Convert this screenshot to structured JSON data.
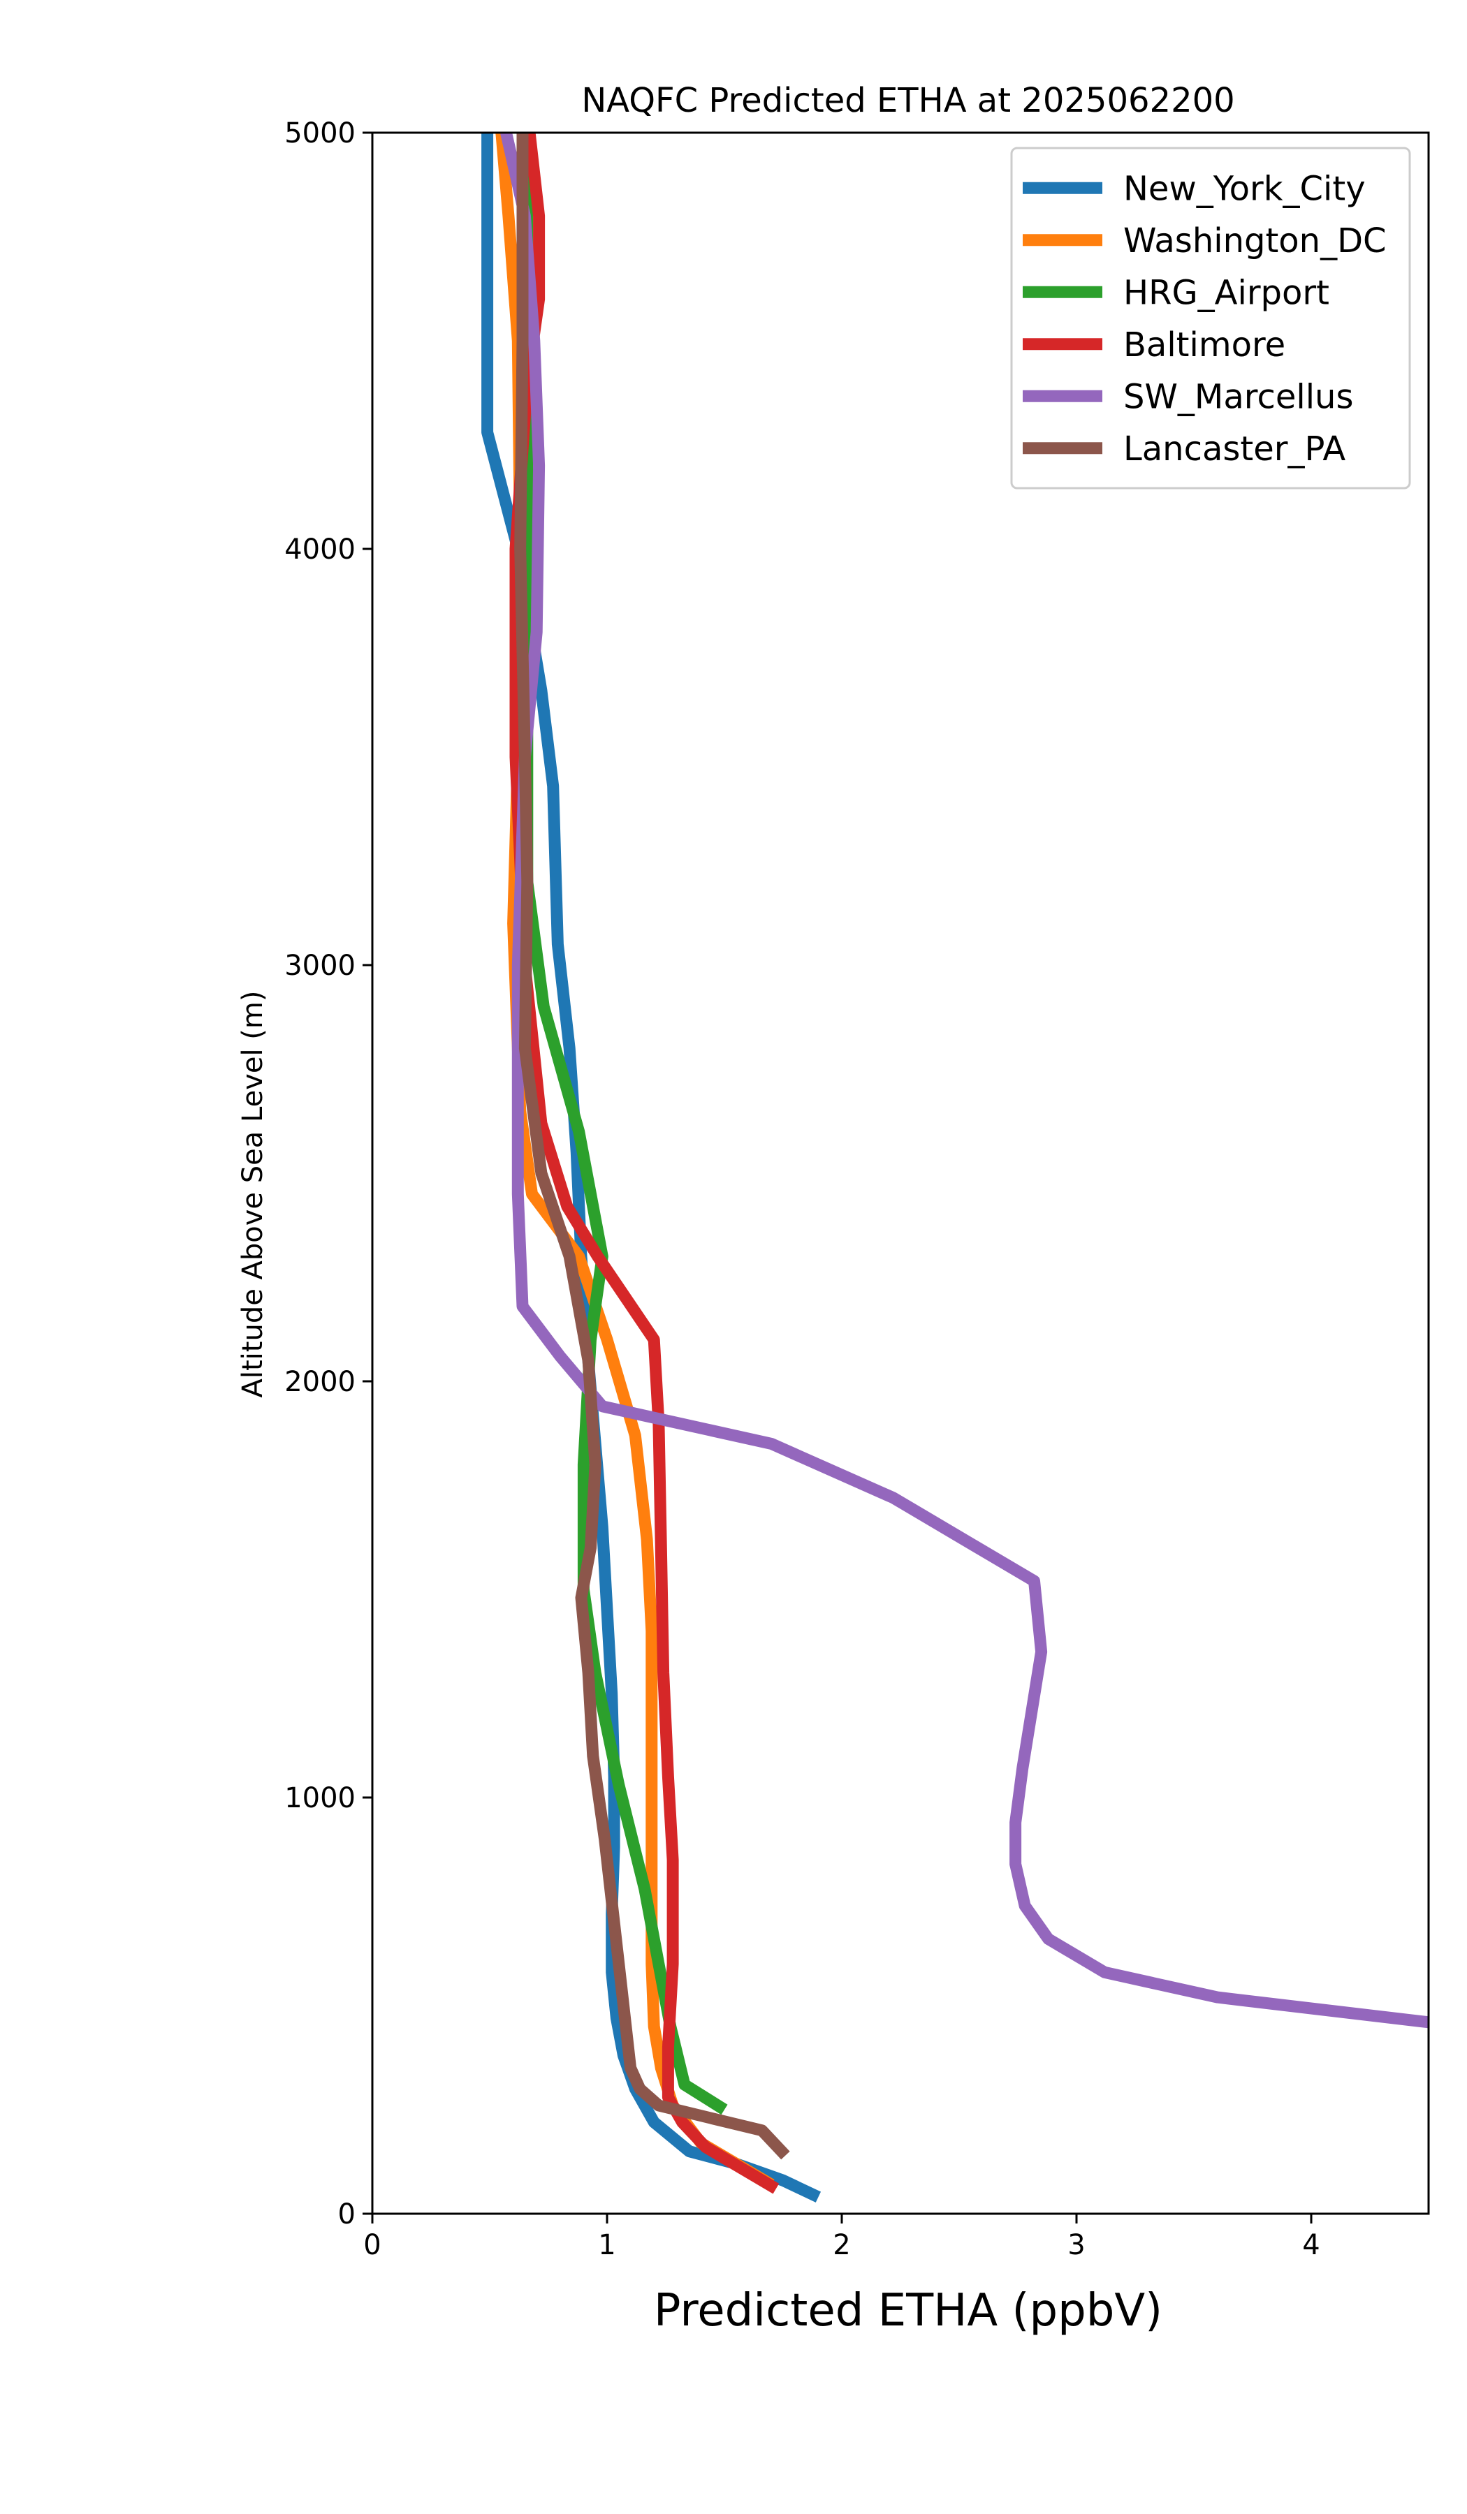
{
  "chart_data": {
    "type": "line",
    "title": "NAQFC Predicted ETHA at 2025062200",
    "xlabel": "Predicted ETHA (ppbV)",
    "ylabel": "Altitude Above Sea Level (m)",
    "xlim": [
      0,
      4.5
    ],
    "ylim": [
      0,
      5000
    ],
    "xticks": [
      0,
      1,
      2,
      3,
      4
    ],
    "yticks": [
      0,
      1000,
      2000,
      3000,
      4000,
      5000
    ],
    "grid": false,
    "legend_position": "top-right",
    "series": [
      {
        "name": "New_York_City",
        "color": "#1f77b4",
        "points": [
          [
            1.9,
            40
          ],
          [
            1.75,
            80
          ],
          [
            1.55,
            120
          ],
          [
            1.35,
            150
          ],
          [
            1.2,
            220
          ],
          [
            1.12,
            300
          ],
          [
            1.07,
            380
          ],
          [
            1.04,
            470
          ],
          [
            1.02,
            580
          ],
          [
            1.02,
            720
          ],
          [
            1.03,
            880
          ],
          [
            1.03,
            1050
          ],
          [
            1.02,
            1250
          ],
          [
            1.0,
            1450
          ],
          [
            0.98,
            1650
          ],
          [
            0.95,
            1850
          ],
          [
            0.92,
            2050
          ],
          [
            0.89,
            2300
          ],
          [
            0.87,
            2550
          ],
          [
            0.84,
            2800
          ],
          [
            0.79,
            3050
          ],
          [
            0.77,
            3430
          ],
          [
            0.72,
            3660
          ],
          [
            0.62,
            4000
          ],
          [
            0.49,
            4280
          ],
          [
            0.49,
            4600
          ],
          [
            0.49,
            5000
          ]
        ]
      },
      {
        "name": "Washington_DC",
        "color": "#ff7f0e",
        "points": [
          [
            1.7,
            70
          ],
          [
            1.4,
            170
          ],
          [
            1.28,
            260
          ],
          [
            1.23,
            350
          ],
          [
            1.2,
            450
          ],
          [
            1.19,
            600
          ],
          [
            1.19,
            800
          ],
          [
            1.19,
            1000
          ],
          [
            1.19,
            1200
          ],
          [
            1.19,
            1400
          ],
          [
            1.17,
            1620
          ],
          [
            1.12,
            1870
          ],
          [
            1.0,
            2100
          ],
          [
            0.88,
            2300
          ],
          [
            0.68,
            2450
          ],
          [
            0.63,
            2650
          ],
          [
            0.6,
            3100
          ],
          [
            0.62,
            3500
          ],
          [
            0.63,
            4000
          ],
          [
            0.62,
            4500
          ],
          [
            0.58,
            4800
          ],
          [
            0.55,
            5000
          ]
        ]
      },
      {
        "name": "HRG_Airport",
        "color": "#2ca02c",
        "points": [
          [
            1.5,
            250
          ],
          [
            1.33,
            310
          ],
          [
            1.27,
            450
          ],
          [
            1.22,
            600
          ],
          [
            1.16,
            780
          ],
          [
            1.05,
            1030
          ],
          [
            0.95,
            1300
          ],
          [
            0.9,
            1500
          ],
          [
            0.9,
            1800
          ],
          [
            0.93,
            2100
          ],
          [
            0.98,
            2300
          ],
          [
            0.88,
            2600
          ],
          [
            0.73,
            2900
          ],
          [
            0.66,
            3200
          ],
          [
            0.66,
            3600
          ],
          [
            0.66,
            4000
          ],
          [
            0.66,
            4500
          ],
          [
            0.66,
            5000
          ]
        ]
      },
      {
        "name": "Baltimore",
        "color": "#d62728",
        "points": [
          [
            1.72,
            60
          ],
          [
            1.42,
            160
          ],
          [
            1.32,
            220
          ],
          [
            1.26,
            280
          ],
          [
            1.26,
            400
          ],
          [
            1.28,
            600
          ],
          [
            1.28,
            850
          ],
          [
            1.26,
            1050
          ],
          [
            1.24,
            1300
          ],
          [
            1.23,
            1600
          ],
          [
            1.22,
            1900
          ],
          [
            1.2,
            2100
          ],
          [
            0.96,
            2300
          ],
          [
            0.83,
            2420
          ],
          [
            0.72,
            2620
          ],
          [
            0.65,
            3000
          ],
          [
            0.61,
            3500
          ],
          [
            0.61,
            4000
          ],
          [
            0.66,
            4400
          ],
          [
            0.71,
            4600
          ],
          [
            0.71,
            4800
          ],
          [
            0.67,
            5000
          ]
        ]
      },
      {
        "name": "SW_Marcellus",
        "color": "#9467bd",
        "points": [
          [
            4.5,
            460
          ],
          [
            3.6,
            520
          ],
          [
            3.12,
            580
          ],
          [
            2.88,
            660
          ],
          [
            2.78,
            740
          ],
          [
            2.74,
            840
          ],
          [
            2.74,
            940
          ],
          [
            2.77,
            1070
          ],
          [
            2.85,
            1350
          ],
          [
            2.82,
            1520
          ],
          [
            2.22,
            1720
          ],
          [
            1.7,
            1850
          ],
          [
            0.98,
            1940
          ],
          [
            0.8,
            2060
          ],
          [
            0.64,
            2180
          ],
          [
            0.62,
            2450
          ],
          [
            0.62,
            3000
          ],
          [
            0.65,
            3500
          ],
          [
            0.7,
            3800
          ],
          [
            0.71,
            4200
          ],
          [
            0.69,
            4500
          ],
          [
            0.65,
            4800
          ],
          [
            0.57,
            5000
          ]
        ]
      },
      {
        "name": "Lancaster_PA",
        "color": "#8c564b",
        "points": [
          [
            1.76,
            140
          ],
          [
            1.66,
            200
          ],
          [
            1.22,
            260
          ],
          [
            1.14,
            300
          ],
          [
            1.1,
            350
          ],
          [
            1.08,
            450
          ],
          [
            1.06,
            550
          ],
          [
            1.03,
            700
          ],
          [
            0.99,
            900
          ],
          [
            0.94,
            1100
          ],
          [
            0.92,
            1300
          ],
          [
            0.89,
            1480
          ],
          [
            0.93,
            1600
          ],
          [
            0.95,
            1800
          ],
          [
            0.92,
            2050
          ],
          [
            0.84,
            2300
          ],
          [
            0.72,
            2500
          ],
          [
            0.65,
            2800
          ],
          [
            0.66,
            3200
          ],
          [
            0.65,
            3500
          ],
          [
            0.63,
            4000
          ],
          [
            0.64,
            4500
          ],
          [
            0.64,
            5000
          ]
        ]
      }
    ]
  }
}
